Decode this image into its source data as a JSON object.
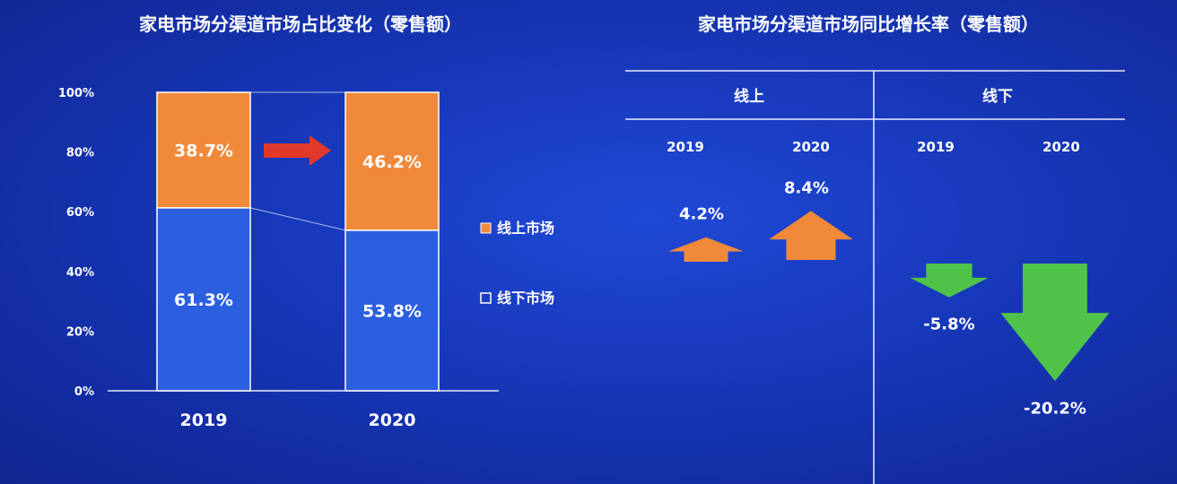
{
  "colors": {
    "online": "#f08a3a",
    "offline": "#2b5fe0",
    "growth_up": "#f08a3a",
    "growth_down": "#4fc24a",
    "arrow": "#e23a2a"
  },
  "chart_data": [
    {
      "type": "bar",
      "stacked": true,
      "title": "家电市场分渠道市场占比变化（零售额）",
      "categories": [
        "2019",
        "2020"
      ],
      "y_ticks": [
        "0%",
        "20%",
        "40%",
        "60%",
        "80%",
        "100%"
      ],
      "ylim": [
        0,
        100
      ],
      "series": [
        {
          "name": "线下市场",
          "values": [
            61.3,
            53.8
          ],
          "labels": [
            "61.3%",
            "53.8%"
          ]
        },
        {
          "name": "线上市场",
          "values": [
            38.7,
            46.2
          ],
          "labels": [
            "38.7%",
            "46.2%"
          ]
        }
      ],
      "legend_position": "right"
    },
    {
      "type": "bar",
      "title": "家电市场分渠道市场同比增长率（零售额）",
      "groups": [
        {
          "name": "线上",
          "x": [
            "2019",
            "2020"
          ],
          "values": [
            4.2,
            8.4
          ],
          "labels": [
            "4.2%",
            "8.4%"
          ]
        },
        {
          "name": "线下",
          "x": [
            "2019",
            "2020"
          ],
          "values": [
            -5.8,
            -20.2
          ],
          "labels": [
            "-5.8%",
            "-20.2%"
          ]
        }
      ]
    }
  ]
}
